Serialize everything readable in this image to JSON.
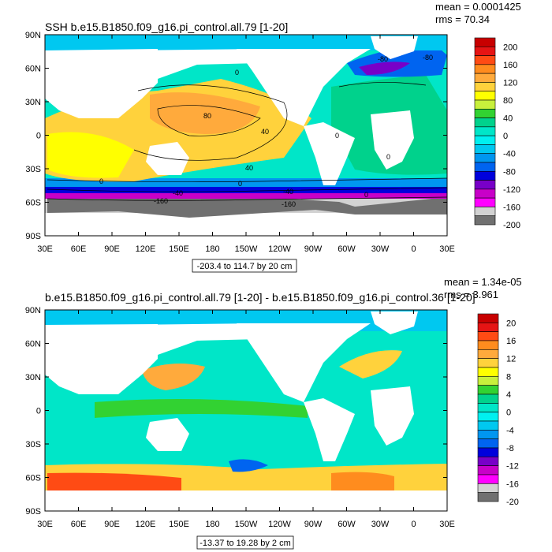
{
  "chart_data": [
    {
      "type": "heatmap",
      "title": "SSH b.e15.B1850.f09_g16.pi_control.all.79 [1-20]",
      "stats": [
        "mean = 0.0001425",
        "rms = 70.34"
      ],
      "range_label": "-203.4 to 114.7 by 20 cm",
      "x_ticks": [
        "30E",
        "60E",
        "90E",
        "120E",
        "150E",
        "180",
        "150W",
        "120W",
        "90W",
        "60W",
        "30W",
        "0",
        "30E"
      ],
      "y_ticks": [
        "90N",
        "60N",
        "30N",
        "0",
        "30S",
        "60S",
        "90S"
      ],
      "xlim": [
        30,
        390
      ],
      "ylim": [
        -90,
        90
      ],
      "colorbar": {
        "labels": [
          "200",
          "160",
          "120",
          "80",
          "40",
          "0",
          "-40",
          "-80",
          "-120",
          "-160",
          "-200"
        ],
        "colors": [
          "#c80000",
          "#e61414",
          "#ff4b14",
          "#ff8c1e",
          "#ffaa3c",
          "#ffd23c",
          "#ffff00",
          "#c8f03c",
          "#32d232",
          "#00d28c",
          "#00e6c8",
          "#00f0f0",
          "#00c8f0",
          "#0096f0",
          "#0064f0",
          "#0000dc",
          "#7800c8",
          "#c800c8",
          "#ff00ff",
          "#d2d2d2",
          "#707070"
        ]
      },
      "contour_labels": [
        "0",
        "80",
        "40",
        "40",
        "0",
        "0",
        "-40",
        "-160",
        "-160",
        "-40",
        "-80",
        "-80",
        "0",
        "0",
        "0"
      ]
    },
    {
      "type": "heatmap",
      "title": "b.e15.B1850.f09_g16.pi_control.all.79 [1-20] - b.e15.B1850.f09_g16.pi_control.36 [1-20]",
      "stats": [
        "mean = 1.34e-05",
        "rms = 3.961"
      ],
      "range_label": "-13.37 to 19.28 by 2 cm",
      "x_ticks": [
        "30E",
        "60E",
        "90E",
        "120E",
        "150E",
        "180",
        "150W",
        "120W",
        "90W",
        "60W",
        "30W",
        "0",
        "30E"
      ],
      "y_ticks": [
        "90N",
        "60N",
        "30N",
        "0",
        "30S",
        "60S",
        "90S"
      ],
      "xlim": [
        30,
        390
      ],
      "ylim": [
        -90,
        90
      ],
      "colorbar": {
        "labels": [
          "20",
          "16",
          "12",
          "8",
          "4",
          "0",
          "-4",
          "-8",
          "-12",
          "-16",
          "-20"
        ],
        "colors": [
          "#c80000",
          "#e61414",
          "#ff4b14",
          "#ff8c1e",
          "#ffaa3c",
          "#ffd23c",
          "#ffff00",
          "#c8f03c",
          "#32d232",
          "#00d28c",
          "#00e6c8",
          "#00f0f0",
          "#00c8f0",
          "#0096f0",
          "#0064f0",
          "#0000dc",
          "#7800c8",
          "#c800c8",
          "#ff00ff",
          "#d2d2d2",
          "#707070"
        ]
      }
    }
  ]
}
